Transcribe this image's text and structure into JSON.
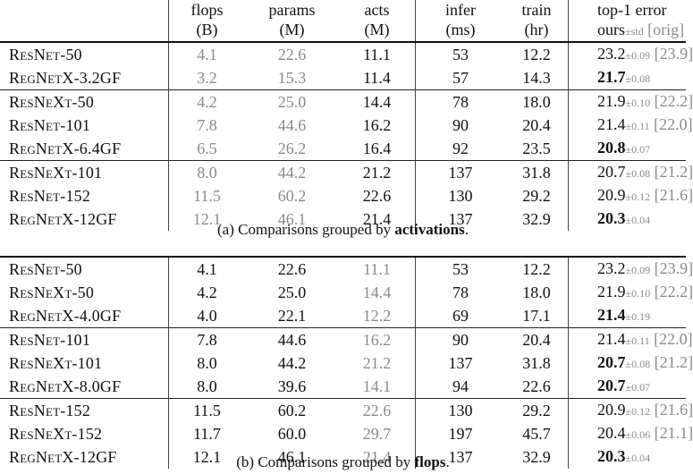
{
  "headers": {
    "flops": [
      "flops",
      "(B)"
    ],
    "params": [
      "params",
      "(M)"
    ],
    "acts": [
      "acts",
      "(M)"
    ],
    "infer": [
      "infer",
      "(ms)"
    ],
    "train": [
      "train",
      "(hr)"
    ],
    "error": [
      "top-1 error",
      "ours",
      "±std",
      "[orig]"
    ]
  },
  "table_a": {
    "groups": [
      [
        {
          "name": "ResNet-50",
          "flops": "4.1",
          "params": "22.6",
          "acts": "11.1",
          "infer": "53",
          "train": "12.2",
          "err": "23.2",
          "std": "±0.09",
          "orig": "[23.9]",
          "best": false
        },
        {
          "name": "RegNetX-3.2GF",
          "flops": "3.2",
          "params": "15.3",
          "acts": "11.4",
          "infer": "57",
          "train": "14.3",
          "err": "21.7",
          "std": "±0.08",
          "orig": "",
          "best": true
        }
      ],
      [
        {
          "name": "ResNeXt-50",
          "flops": "4.2",
          "params": "25.0",
          "acts": "14.4",
          "infer": "78",
          "train": "18.0",
          "err": "21.9",
          "std": "±0.10",
          "orig": "[22.2]",
          "best": false
        },
        {
          "name": "ResNet-101",
          "flops": "7.8",
          "params": "44.6",
          "acts": "16.2",
          "infer": "90",
          "train": "20.4",
          "err": "21.4",
          "std": "±0.11",
          "orig": "[22.0]",
          "best": false
        },
        {
          "name": "RegNetX-6.4GF",
          "flops": "6.5",
          "params": "26.2",
          "acts": "16.4",
          "infer": "92",
          "train": "23.5",
          "err": "20.8",
          "std": "±0.07",
          "orig": "",
          "best": true
        }
      ],
      [
        {
          "name": "ResNeXt-101",
          "flops": "8.0",
          "params": "44.2",
          "acts": "21.2",
          "infer": "137",
          "train": "31.8",
          "err": "20.7",
          "std": "±0.08",
          "orig": "[21.2]",
          "best": false
        },
        {
          "name": "ResNet-152",
          "flops": "11.5",
          "params": "60.2",
          "acts": "22.6",
          "infer": "130",
          "train": "29.2",
          "err": "20.9",
          "std": "±0.12",
          "orig": "[21.6]",
          "best": false
        },
        {
          "name": "RegNetX-12GF",
          "flops": "12.1",
          "params": "46.1",
          "acts": "21.4",
          "infer": "137",
          "train": "32.9",
          "err": "20.3",
          "std": "±0.04",
          "orig": "",
          "best": true
        }
      ]
    ],
    "caption_prefix": "(a) Comparisons grouped by ",
    "caption_bold": "activations",
    "caption_suffix": "."
  },
  "table_b": {
    "groups": [
      [
        {
          "name": "ResNet-50",
          "flops": "4.1",
          "params": "22.6",
          "acts": "11.1",
          "infer": "53",
          "train": "12.2",
          "err": "23.2",
          "std": "±0.09",
          "orig": "[23.9]",
          "best": false
        },
        {
          "name": "ResNeXt-50",
          "flops": "4.2",
          "params": "25.0",
          "acts": "14.4",
          "infer": "78",
          "train": "18.0",
          "err": "21.9",
          "std": "±0.10",
          "orig": "[22.2]",
          "best": false
        },
        {
          "name": "RegNetX-4.0GF",
          "flops": "4.0",
          "params": "22.1",
          "acts": "12.2",
          "infer": "69",
          "train": "17.1",
          "err": "21.4",
          "std": "±0.19",
          "orig": "",
          "best": true
        }
      ],
      [
        {
          "name": "ResNet-101",
          "flops": "7.8",
          "params": "44.6",
          "acts": "16.2",
          "infer": "90",
          "train": "20.4",
          "err": "21.4",
          "std": "±0.11",
          "orig": "[22.0]",
          "best": false
        },
        {
          "name": "ResNeXt-101",
          "flops": "8.0",
          "params": "44.2",
          "acts": "21.2",
          "infer": "137",
          "train": "31.8",
          "err": "20.7",
          "std": "±0.08",
          "orig": "[21.2]",
          "best": true
        },
        {
          "name": "RegNetX-8.0GF",
          "flops": "8.0",
          "params": "39.6",
          "acts": "14.1",
          "infer": "94",
          "train": "22.6",
          "err": "20.7",
          "std": "±0.07",
          "orig": "",
          "best": true
        }
      ],
      [
        {
          "name": "ResNet-152",
          "flops": "11.5",
          "params": "60.2",
          "acts": "22.6",
          "infer": "130",
          "train": "29.2",
          "err": "20.9",
          "std": "±0.12",
          "orig": "[21.6]",
          "best": false
        },
        {
          "name": "ResNeXt-152",
          "flops": "11.7",
          "params": "60.0",
          "acts": "29.7",
          "infer": "197",
          "train": "45.7",
          "err": "20.4",
          "std": "±0.06",
          "orig": "[21.1]",
          "best": false
        },
        {
          "name": "RegNetX-12GF",
          "flops": "12.1",
          "params": "46.1",
          "acts": "21.4",
          "infer": "137",
          "train": "32.9",
          "err": "20.3",
          "std": "±0.04",
          "orig": "",
          "best": true
        }
      ]
    ],
    "caption_prefix": "(b) Comparisons grouped by ",
    "caption_bold": "flops",
    "caption_suffix": "."
  },
  "colors": {
    "text": "#111111",
    "dim": "#8a8a8a"
  }
}
